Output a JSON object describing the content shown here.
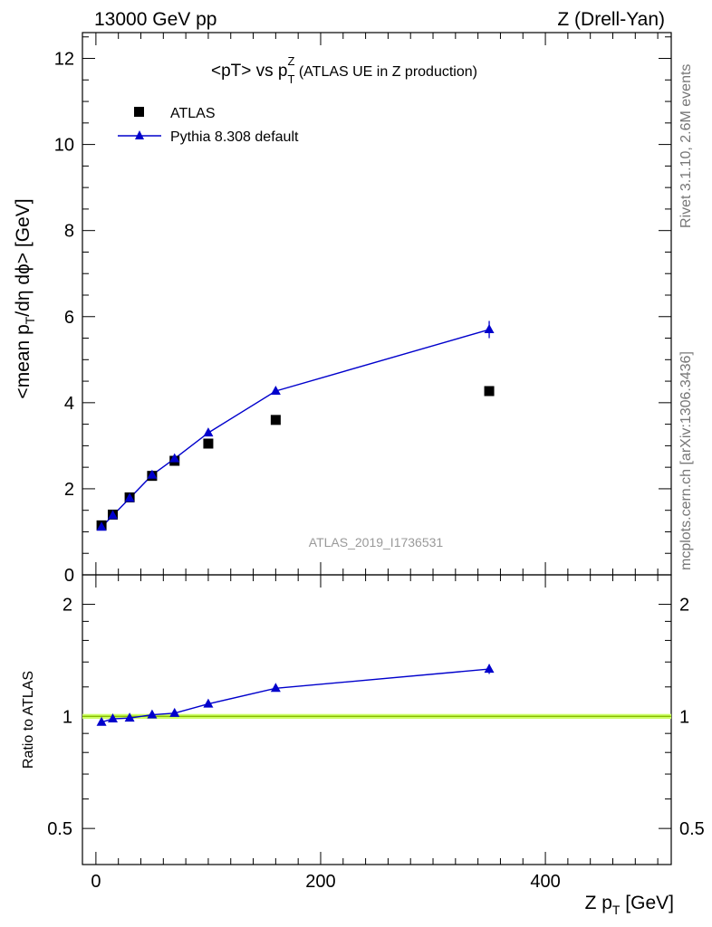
{
  "header": {
    "left": "13000 GeV pp",
    "right": "Z (Drell-Yan)"
  },
  "side_labels": {
    "rivet": "Rivet 3.1.10,  2.6M events",
    "mcplots": "mcplots.cern.ch [arXiv:1306.3436]"
  },
  "chart_data": [
    {
      "type": "scatter",
      "panel": "main",
      "title": "<pT> vs p_T^Z (ATLAS UE in Z production)",
      "title_parts": {
        "pre": "<pT> vs p",
        "sub": "T",
        "sup": "Z",
        "post": " (ATLAS UE in Z production)"
      },
      "xlabel": "Z p_T [GeV]",
      "ylabel": "<mean p_T/dη dϕ> [GeV]",
      "xlim": [
        -12,
        512
      ],
      "ylim": [
        0,
        12.6
      ],
      "x_ticks": [
        "0",
        "200",
        "400"
      ],
      "y_ticks": [
        "0",
        "2",
        "4",
        "6",
        "8",
        "10",
        "12"
      ],
      "legend_position": "top-left",
      "watermark": "ATLAS_2019_I1736531",
      "series": [
        {
          "name": "ATLAS",
          "marker": "square",
          "color": "#000000",
          "x": [
            5,
            15,
            30,
            50,
            70,
            100,
            160,
            350
          ],
          "y": [
            1.15,
            1.4,
            1.8,
            2.3,
            2.65,
            3.05,
            3.6,
            4.27
          ]
        },
        {
          "name": "Pythia 8.308 default",
          "marker": "triangle",
          "line": true,
          "color": "#0000cc",
          "x": [
            5,
            15,
            30,
            50,
            70,
            100,
            160,
            350
          ],
          "y": [
            1.11,
            1.38,
            1.78,
            2.32,
            2.7,
            3.3,
            4.27,
            5.7
          ],
          "yerr": [
            0.03,
            0.03,
            0.03,
            0.04,
            0.05,
            0.06,
            0.07,
            0.2
          ]
        }
      ]
    },
    {
      "type": "line",
      "panel": "ratio",
      "ylabel": "Ratio to ATLAS",
      "xlim": [
        -12,
        512
      ],
      "ylim": [
        0.4,
        2.4
      ],
      "log_y": true,
      "x_ticks": [
        "0",
        "200",
        "400"
      ],
      "y_ticks": [
        "0.5",
        "1",
        "2"
      ],
      "reference": {
        "value": 1.0,
        "band": [
          0.985,
          1.015
        ],
        "band_color": "#ccff66",
        "line_color": "#88bb00"
      },
      "series": [
        {
          "name": "Pythia 8.308 default",
          "color": "#0000cc",
          "x": [
            5,
            15,
            30,
            50,
            70,
            100,
            160,
            350
          ],
          "y": [
            0.965,
            0.985,
            0.99,
            1.01,
            1.02,
            1.08,
            1.19,
            1.34
          ],
          "yerr": [
            0.01,
            0.01,
            0.01,
            0.01,
            0.01,
            0.015,
            0.02,
            0.04
          ]
        }
      ]
    }
  ]
}
